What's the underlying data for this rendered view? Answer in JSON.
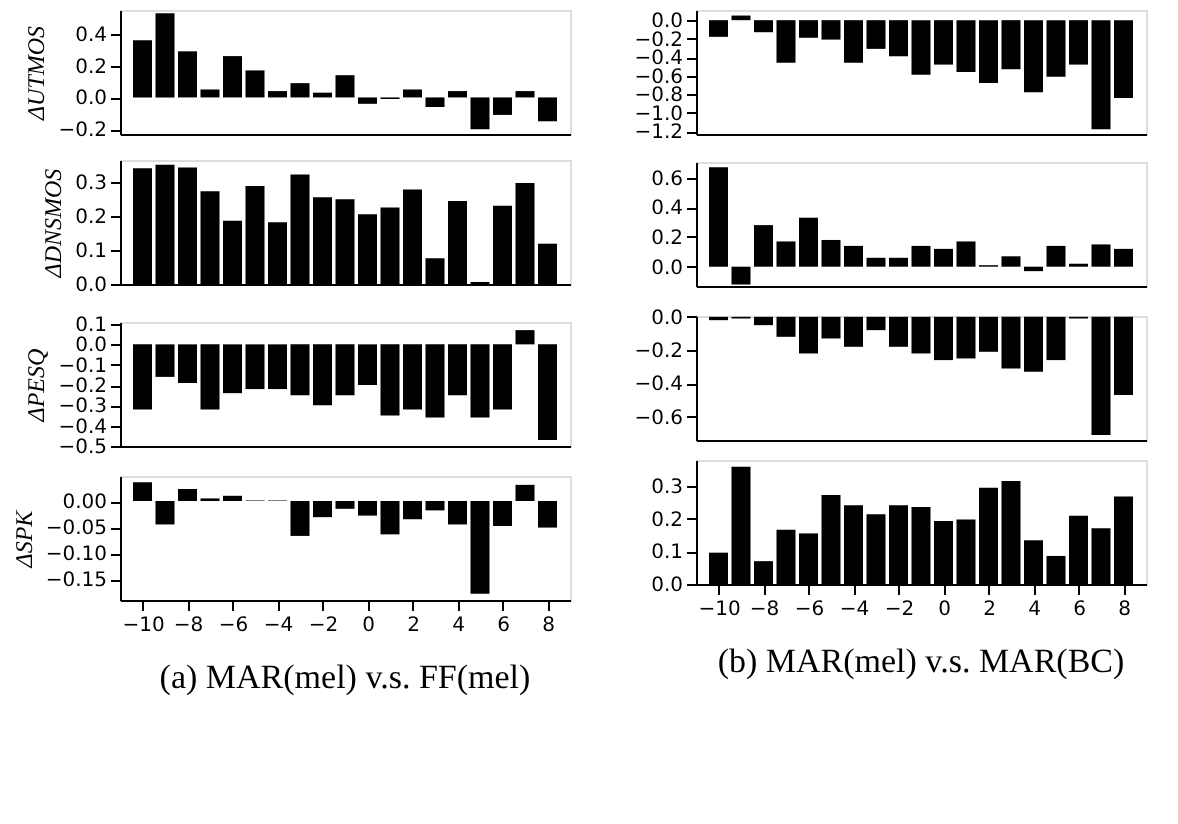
{
  "chart_data": [
    {
      "type": "bar",
      "ylabel": "ΔUTMOS",
      "x": [
        -10,
        -9,
        -8,
        -7,
        -6,
        -5,
        -4,
        -3,
        -2,
        -1,
        0,
        1,
        2,
        3,
        4,
        5,
        6,
        7,
        8
      ],
      "values": [
        0.36,
        0.53,
        0.29,
        0.05,
        0.26,
        0.17,
        0.04,
        0.09,
        0.03,
        0.14,
        -0.04,
        -0.01,
        0.05,
        -0.06,
        0.04,
        -0.2,
        -0.11,
        0.04,
        -0.15
      ],
      "color": "#000000",
      "xlim": [
        -11,
        9
      ],
      "xticks": [
        -10,
        -8,
        -6,
        -4,
        -2,
        0,
        2,
        4,
        6,
        8
      ],
      "ylim": [
        -0.23,
        0.55
      ],
      "yticks": [
        {
          "value": -0.2,
          "label": "−0.2"
        },
        {
          "value": 0,
          "label": "0.0"
        },
        {
          "value": 0.2,
          "label": "0.2"
        },
        {
          "value": 0.4,
          "label": "0.4"
        }
      ],
      "tick_labels": "y",
      "grid": false
    },
    {
      "type": "bar",
      "ylabel": "ΔDNSMOS",
      "x": [
        -10,
        -9,
        -8,
        -7,
        -6,
        -5,
        -4,
        -3,
        -2,
        -1,
        0,
        1,
        2,
        3,
        4,
        5,
        6,
        7,
        8
      ],
      "values": [
        0.342,
        0.352,
        0.344,
        0.274,
        0.187,
        0.289,
        0.182,
        0.323,
        0.256,
        0.25,
        0.206,
        0.226,
        0.279,
        0.076,
        0.245,
        0.006,
        0.231,
        0.298,
        0.119
      ],
      "color": "#000000",
      "xlim": [
        -11,
        9
      ],
      "xticks": [
        -10,
        -8,
        -6,
        -4,
        -2,
        0,
        2,
        4,
        6,
        8
      ],
      "ylim": [
        0,
        0.366
      ],
      "yticks": [
        {
          "value": 0,
          "label": "0.0"
        },
        0.1,
        0.2,
        0.3
      ],
      "tick_labels": "y",
      "grid": false
    },
    {
      "type": "bar",
      "ylabel": "ΔPESQ",
      "x": [
        -10,
        -9,
        -8,
        -7,
        -6,
        -5,
        -4,
        -3,
        -2,
        -1,
        0,
        1,
        2,
        3,
        4,
        5,
        6,
        7,
        8
      ],
      "values": [
        -0.32,
        -0.16,
        -0.19,
        -0.32,
        -0.24,
        -0.22,
        -0.22,
        -0.25,
        -0.3,
        -0.25,
        -0.2,
        -0.35,
        -0.32,
        -0.36,
        -0.25,
        -0.36,
        -0.32,
        0.07,
        -0.47
      ],
      "color": "#000000",
      "xlim": [
        -11,
        9
      ],
      "xticks": [
        -10,
        -8,
        -6,
        -4,
        -2,
        0,
        2,
        4,
        6,
        8
      ],
      "ylim": [
        -0.5,
        0.11
      ],
      "yticks": [
        {
          "value": -0.5,
          "label": "−0.5"
        },
        {
          "value": -0.4,
          "label": "−0.4"
        },
        {
          "value": -0.3,
          "label": "−0.3"
        },
        {
          "value": -0.2,
          "label": "−0.2"
        },
        {
          "value": -0.1,
          "label": "−0.1"
        },
        {
          "value": 0,
          "label": "0.0"
        },
        0.1
      ],
      "tick_labels": "y",
      "grid": false
    },
    {
      "type": "bar",
      "ylabel": "ΔSPK",
      "x": [
        -10,
        -9,
        -8,
        -7,
        -6,
        -5,
        -4,
        -3,
        -2,
        -1,
        0,
        1,
        2,
        3,
        4,
        5,
        6,
        7,
        8
      ],
      "values": [
        0.036,
        -0.045,
        0.023,
        0.005,
        0.01,
        0.001,
        0.001,
        -0.067,
        -0.031,
        -0.015,
        -0.028,
        -0.064,
        -0.035,
        -0.018,
        -0.045,
        -0.178,
        -0.048,
        0.031,
        -0.051
      ],
      "color": "#000000",
      "xlim": [
        -11,
        9
      ],
      "xticks": [
        -10,
        -8,
        -6,
        -4,
        -2,
        0,
        2,
        4,
        6,
        8
      ],
      "ylim": [
        -0.19,
        0.048
      ],
      "yticks": [
        {
          "value": -0.15,
          "label": "−0.15"
        },
        {
          "value": -0.1,
          "label": "−0.10"
        },
        {
          "value": -0.05,
          "label": "−0.05"
        },
        {
          "value": 0,
          "label": "0.00"
        }
      ],
      "grid": false,
      "annotations": [
        "(a) MAR(mel) v.s. FF(mel)"
      ]
    },
    {
      "type": "bar",
      "x": [
        -10,
        -9,
        -8,
        -7,
        -6,
        -5,
        -4,
        -3,
        -2,
        -1,
        0,
        1,
        2,
        3,
        4,
        5,
        6,
        7,
        8
      ],
      "values": [
        -0.18,
        0.05,
        -0.13,
        -0.46,
        -0.19,
        -0.21,
        -0.46,
        -0.31,
        -0.39,
        -0.59,
        -0.48,
        -0.56,
        -0.68,
        -0.53,
        -0.78,
        -0.61,
        -0.48,
        -1.18,
        -0.84
      ],
      "color": "#000000",
      "xlim": [
        -11,
        9
      ],
      "xticks": [
        -10,
        -8,
        -6,
        -4,
        -2,
        0,
        2,
        4,
        6,
        8
      ],
      "ylim": [
        -1.23,
        0.11
      ],
      "yticks": [
        {
          "value": -1.2,
          "label": "−1.2"
        },
        {
          "value": -1.0,
          "label": "−1.0"
        },
        {
          "value": -0.8,
          "label": "−0.8"
        },
        {
          "value": -0.6,
          "label": "−0.6"
        },
        {
          "value": -0.4,
          "label": "−0.4"
        },
        {
          "value": -0.2,
          "label": "−0.2"
        },
        {
          "value": 0,
          "label": "0.0"
        }
      ],
      "tick_labels": "y",
      "grid": false
    },
    {
      "type": "bar",
      "x": [
        -10,
        -9,
        -8,
        -7,
        -6,
        -5,
        -4,
        -3,
        -2,
        -1,
        0,
        1,
        2,
        3,
        4,
        5,
        6,
        7,
        8
      ],
      "values": [
        0.67,
        -0.12,
        0.28,
        0.17,
        0.33,
        0.18,
        0.14,
        0.06,
        0.06,
        0.14,
        0.12,
        0.17,
        0.01,
        0.07,
        -0.03,
        0.14,
        0.02,
        0.15,
        0.12
      ],
      "color": "#000000",
      "xlim": [
        -11,
        9
      ],
      "xticks": [
        -10,
        -8,
        -6,
        -4,
        -2,
        0,
        2,
        4,
        6,
        8
      ],
      "ylim": [
        -0.13,
        0.705
      ],
      "yticks": [
        {
          "value": 0,
          "label": "0.0"
        },
        0.2,
        0.4,
        0.6
      ],
      "tick_labels": "y",
      "grid": false
    },
    {
      "type": "bar",
      "x": [
        -10,
        -9,
        -8,
        -7,
        -6,
        -5,
        -4,
        -3,
        -2,
        -1,
        0,
        1,
        2,
        3,
        4,
        5,
        6,
        7,
        8
      ],
      "values": [
        -0.02,
        -0.01,
        -0.05,
        -0.12,
        -0.22,
        -0.13,
        -0.18,
        -0.08,
        -0.18,
        -0.22,
        -0.26,
        -0.25,
        -0.21,
        -0.31,
        -0.33,
        -0.26,
        -0.01,
        -0.71,
        -0.47
      ],
      "color": "#000000",
      "xlim": [
        -11,
        9
      ],
      "xticks": [
        -10,
        -8,
        -6,
        -4,
        -2,
        0,
        2,
        4,
        6,
        8
      ],
      "ylim": [
        -0.74,
        0.005
      ],
      "yticks": [
        {
          "value": -0.6,
          "label": "−0.6"
        },
        {
          "value": -0.4,
          "label": "−0.4"
        },
        {
          "value": -0.2,
          "label": "−0.2"
        },
        {
          "value": 0,
          "label": "0.0"
        }
      ],
      "tick_labels": "y",
      "grid": false
    },
    {
      "type": "bar",
      "x": [
        -10,
        -9,
        -8,
        -7,
        -6,
        -5,
        -4,
        -3,
        -2,
        -1,
        0,
        1,
        2,
        3,
        4,
        5,
        6,
        7,
        8
      ],
      "values": [
        0.096,
        0.359,
        0.07,
        0.166,
        0.155,
        0.273,
        0.241,
        0.214,
        0.241,
        0.236,
        0.193,
        0.198,
        0.295,
        0.316,
        0.134,
        0.086,
        0.209,
        0.171,
        0.268
      ],
      "color": "#000000",
      "xlim": [
        -11,
        9
      ],
      "xticks": [
        -10,
        -8,
        -6,
        -4,
        -2,
        0,
        2,
        4,
        6,
        8
      ],
      "ylim": [
        0,
        0.38
      ],
      "yticks": [
        {
          "value": 0,
          "label": "0.0"
        },
        0.1,
        0.2,
        0.3
      ],
      "grid": false,
      "annotations": [
        "(b) MAR(mel) v.s. MAR(BC)"
      ]
    }
  ]
}
